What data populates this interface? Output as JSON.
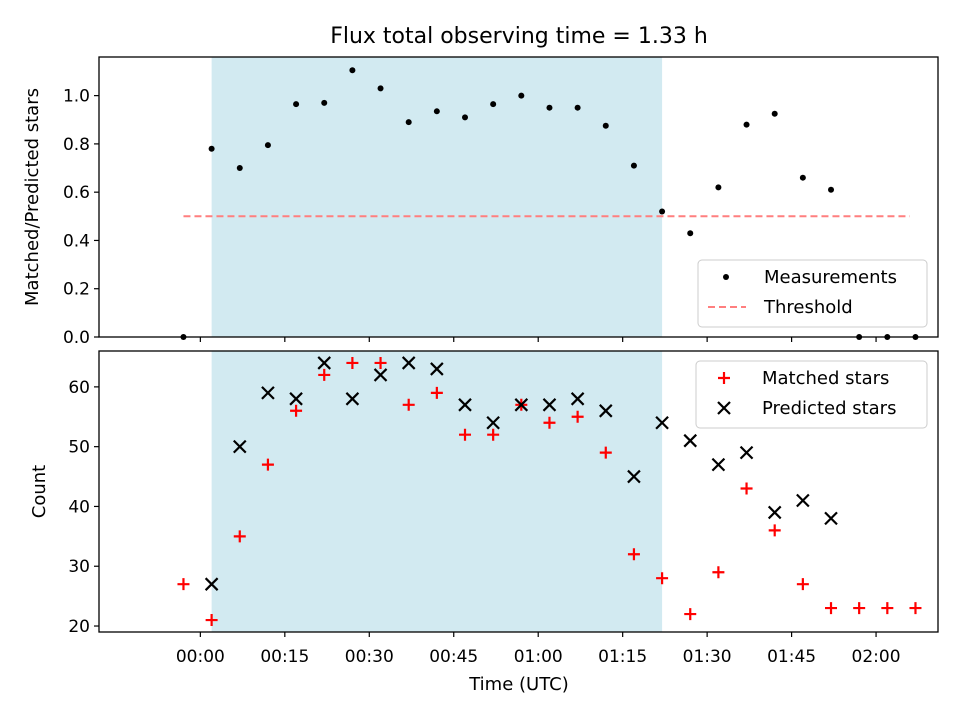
{
  "chart_data": {
    "title": "Flux total observing time = 1.33 h",
    "xlabel": "Time (UTC)",
    "x_unit": "minutes after 00:00 UTC",
    "x_range": [
      -18,
      131
    ],
    "x_ticks": [
      0,
      15,
      30,
      45,
      60,
      75,
      90,
      105,
      120
    ],
    "x_tick_labels": [
      "00:00",
      "00:15",
      "00:30",
      "00:45",
      "01:00",
      "01:15",
      "01:30",
      "01:45",
      "02:00"
    ],
    "observing_window": {
      "start": 2,
      "end": 82,
      "color": "#add8e6"
    },
    "panels": [
      {
        "type": "scatter",
        "ylabel": "Matched/Predicted stars",
        "ylim": [
          0,
          1.16
        ],
        "y_ticks": [
          0.0,
          0.2,
          0.4,
          0.6,
          0.8,
          1.0
        ],
        "y_tick_labels": [
          "0.0",
          "0.2",
          "0.4",
          "0.6",
          "0.8",
          "1.0"
        ],
        "legend_position": "lower right",
        "series": [
          {
            "name": "Measurements",
            "kind": "points",
            "marker": "dot",
            "color": "#000000",
            "x": [
              -3,
              2,
              7,
              12,
              17,
              22,
              27,
              32,
              37,
              42,
              47,
              52,
              57,
              62,
              67,
              72,
              77,
              82,
              87,
              92,
              97,
              102,
              107,
              112,
              117,
              122,
              127
            ],
            "y": [
              0.0,
              0.78,
              0.7,
              0.795,
              0.965,
              0.97,
              1.105,
              1.03,
              0.89,
              0.935,
              0.91,
              0.965,
              1.0,
              0.95,
              0.95,
              0.875,
              0.71,
              0.52,
              0.43,
              0.62,
              0.88,
              0.925,
              0.66,
              0.61,
              0.0,
              0.0,
              0.0
            ]
          },
          {
            "name": "Threshold",
            "kind": "dashed-line",
            "color": "#ff7f7f",
            "x": [
              -3,
              126
            ],
            "y": [
              0.5,
              0.5
            ]
          }
        ]
      },
      {
        "type": "scatter",
        "ylabel": "Count",
        "ylim": [
          19,
          66
        ],
        "y_ticks": [
          20,
          30,
          40,
          50,
          60
        ],
        "y_tick_labels": [
          "20",
          "30",
          "40",
          "50",
          "60"
        ],
        "legend_position": "upper right",
        "series": [
          {
            "name": "Matched stars",
            "kind": "points",
            "marker": "plus",
            "color": "#ff0000",
            "x": [
              -3,
              2,
              7,
              12,
              17,
              22,
              27,
              32,
              37,
              42,
              47,
              52,
              57,
              62,
              67,
              72,
              77,
              82,
              87,
              92,
              97,
              102,
              107,
              112,
              117,
              122,
              127
            ],
            "y": [
              27,
              21,
              35,
              47,
              56,
              62,
              64,
              64,
              57,
              59,
              52,
              52,
              57,
              54,
              55,
              49,
              32,
              28,
              22,
              29,
              43,
              36,
              27,
              23,
              23,
              23,
              23
            ]
          },
          {
            "name": "Predicted stars",
            "kind": "points",
            "marker": "x",
            "color": "#000000",
            "x": [
              2,
              7,
              12,
              17,
              22,
              27,
              32,
              37,
              42,
              47,
              52,
              57,
              62,
              67,
              72,
              77,
              82,
              87,
              92,
              97,
              102,
              107,
              112
            ],
            "y": [
              27,
              50,
              59,
              58,
              64,
              58,
              62,
              64,
              63,
              57,
              54,
              57,
              57,
              58,
              56,
              45,
              54,
              51,
              47,
              49,
              39,
              41,
              38
            ]
          }
        ]
      }
    ]
  }
}
